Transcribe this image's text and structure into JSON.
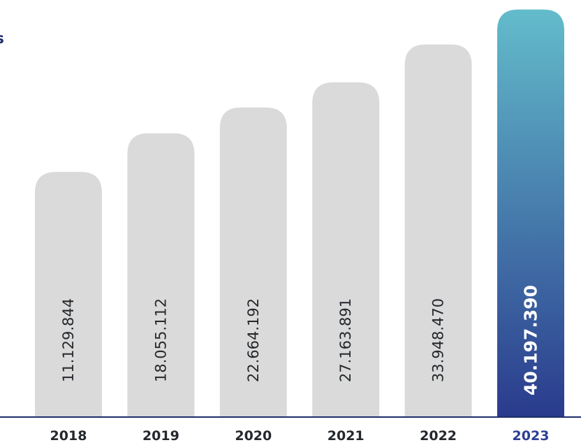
{
  "title": "os",
  "colors": {
    "bar": "#dadada",
    "highlight_top": "#63bccb",
    "highlight_bottom": "#2a3b8d",
    "text_dark": "#24282c",
    "highlight_text": "#2b3f94",
    "title": "#232e6e",
    "axis": "#1d2e6b"
  },
  "chart_data": {
    "type": "bar",
    "categories": [
      "2018",
      "2019",
      "2020",
      "2021",
      "2022",
      "2023"
    ],
    "values": [
      11129844,
      18055112,
      22664192,
      27163891,
      33948470,
      40197390
    ],
    "value_labels": [
      "11.129.844",
      "18.055.112",
      "22.664.192",
      "27.163.891",
      "33.948.470",
      "40.197.390"
    ],
    "highlight_index": 5,
    "title": "os",
    "xlabel": "",
    "ylabel": "",
    "grid": false,
    "legend": "none"
  }
}
